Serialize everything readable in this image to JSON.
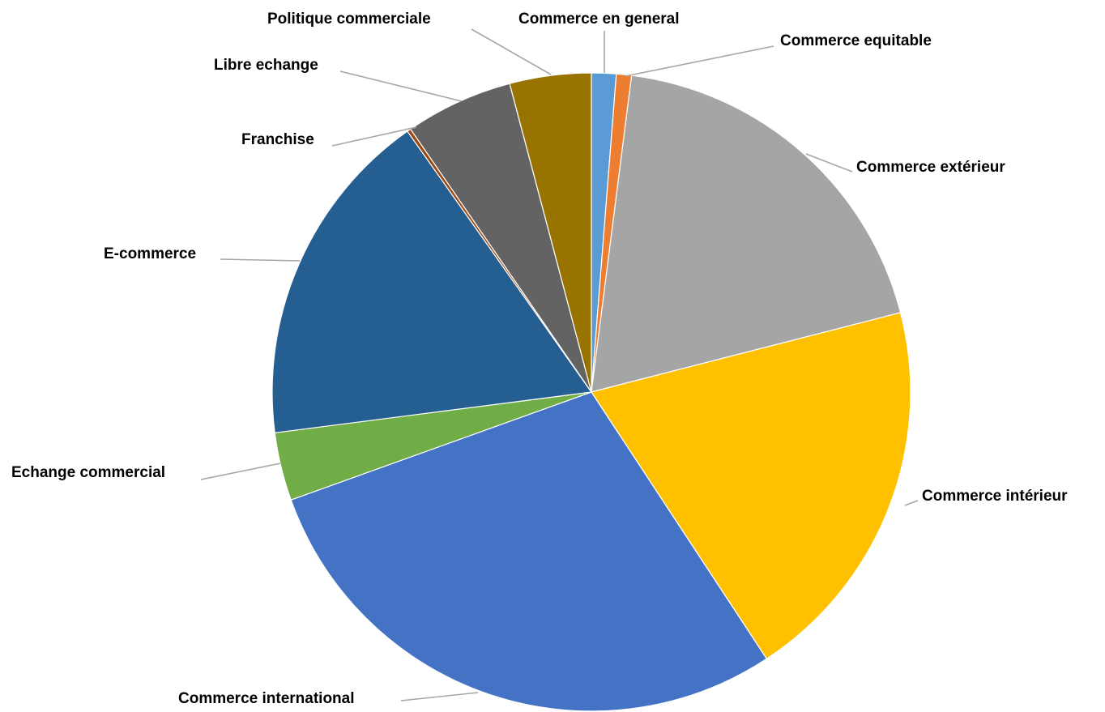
{
  "chart_data": {
    "type": "pie",
    "title": "",
    "legend": "none",
    "labels_position": "outside-with-leader-lines",
    "slices": [
      {
        "label": "Commerce en general",
        "value": 1.3,
        "color": "#5B9BD5"
      },
      {
        "label": "Commerce equitable",
        "value": 0.8,
        "color": "#ED7D31"
      },
      {
        "label": "Commerce extérieur",
        "value": 19.8,
        "color": "#A5A5A5"
      },
      {
        "label": "Commerce intérieur",
        "value": 20.6,
        "color": "#FFC000"
      },
      {
        "label": "Commerce international",
        "value": 30.0,
        "color": "#4472C4"
      },
      {
        "label": "Echange commercial",
        "value": 3.6,
        "color": "#70AD47"
      },
      {
        "label": "E-commerce",
        "value": 18.0,
        "color": "#255E91"
      },
      {
        "label": "Franchise",
        "value": 0.2,
        "color": "#9E480E"
      },
      {
        "label": "Libre echange",
        "value": 5.7,
        "color": "#636363"
      },
      {
        "label": "Politique commerciale",
        "value": 4.3,
        "color": "#997300"
      }
    ]
  }
}
